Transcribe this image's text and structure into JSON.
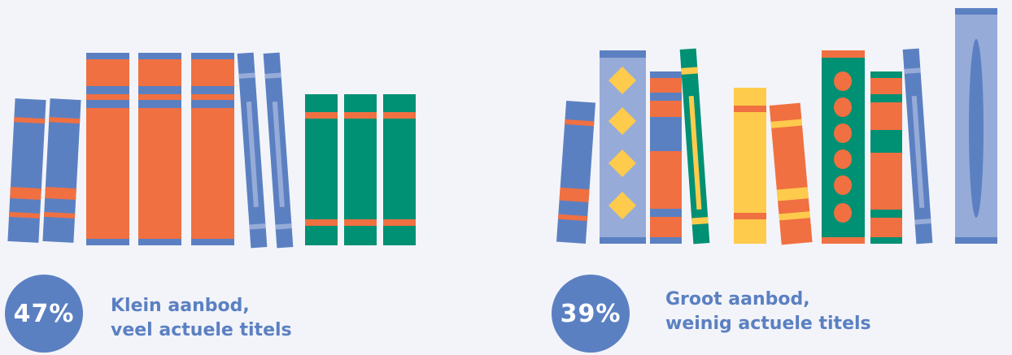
{
  "colors": {
    "background": "#f3f4f9",
    "blue": "#5b80c2",
    "light_blue": "#97abd8",
    "orange": "#f07042",
    "green": "#009073",
    "yellow": "#fecb4c"
  },
  "left_stat": {
    "percent": "47%",
    "line1": "Klein aanbod,",
    "line2": "veel actuele titels"
  },
  "right_stat": {
    "percent": "39%",
    "line1": "Groot aanbod,",
    "line2": "weinig actuele titels"
  }
}
